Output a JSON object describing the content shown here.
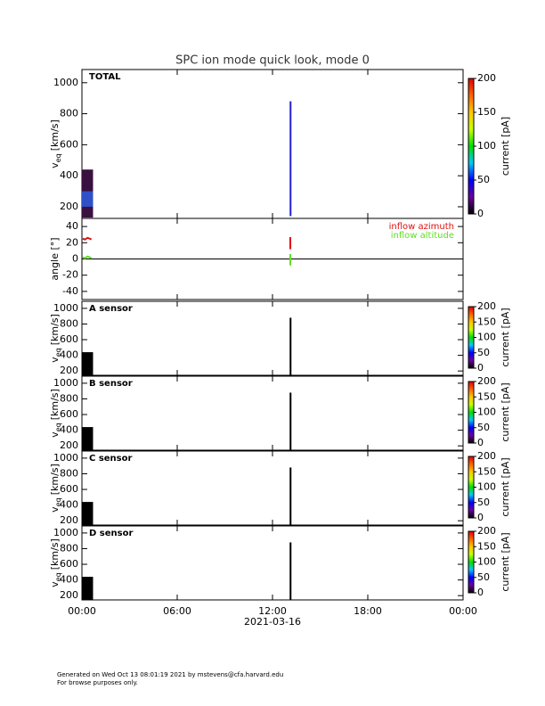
{
  "title": "SPC ion mode quick look, mode 0",
  "xaxis": {
    "xlim": [
      0,
      24
    ],
    "xticks": [
      {
        "value": 0,
        "label": "00:00"
      },
      {
        "value": 6,
        "label": "06:00"
      },
      {
        "value": 12,
        "label": "12:00"
      },
      {
        "value": 18,
        "label": "18:00"
      },
      {
        "value": 24,
        "label": "00:00"
      }
    ],
    "xlabel": "2021-03-16"
  },
  "chart_data": [
    {
      "type": "spectrogram",
      "panel_label": "TOTAL",
      "ylabel": {
        "main": "v",
        "sub": "eq",
        "unit": "[km/s]"
      },
      "ylim": [
        125,
        1085
      ],
      "yticks": [
        200,
        400,
        600,
        800,
        1000
      ],
      "blocks": {
        "x_start": [
          0,
          0,
          13.08
        ],
        "x_end": [
          0.7,
          0.7,
          13.12
        ],
        "v_min": [
          130,
          200,
          140
        ],
        "v_max": [
          440,
          300,
          880
        ],
        "color": [
          "#3a1040",
          "#3050c8",
          "#2020d0"
        ]
      },
      "colorbar": {
        "label": "current [pA]",
        "lim": [
          0,
          200
        ],
        "ticks": [
          0,
          50,
          100,
          150,
          200
        ],
        "colors": [
          "#000000",
          "#6a00a0",
          "#0000ff",
          "#00c8ff",
          "#00e000",
          "#c8ff00",
          "#ffc800",
          "#ff6400",
          "#e00000"
        ]
      }
    },
    {
      "type": "line",
      "ylabel": {
        "main": "angle [°]"
      },
      "ylim": [
        -50,
        50
      ],
      "yticks": [
        -40,
        -20,
        0,
        20,
        40
      ],
      "zero_line": true,
      "series": [
        {
          "name": "inflow azimuth",
          "color": "#e01010",
          "x": [
            0.05,
            0.2,
            0.35,
            0.5,
            0.6,
            null,
            13.12,
            13.12
          ],
          "values": [
            25,
            24,
            26,
            25,
            24,
            null,
            12,
            27
          ]
        },
        {
          "name": "inflow altitude",
          "color": "#60e020",
          "x": [
            0.05,
            0.2,
            0.35,
            0.5,
            0.6,
            null,
            13.12,
            13.12
          ],
          "values": [
            2,
            1,
            3,
            2,
            1,
            null,
            -8,
            6
          ]
        }
      ]
    },
    {
      "type": "spectrogram",
      "panel_label": "A sensor",
      "ylabel": {
        "main": "v",
        "sub": "eq",
        "unit": "[km/s]"
      },
      "ylim": [
        145,
        1090
      ],
      "yticks": [
        200,
        400,
        600,
        800,
        1000
      ],
      "blocks": {
        "x_start": [
          0,
          13.08
        ],
        "x_end": [
          0.7,
          13.12
        ],
        "v_min": [
          145,
          145
        ],
        "v_max": [
          440,
          880
        ],
        "color": [
          "#000000",
          "#000000"
        ]
      },
      "colorbar": {
        "label": "current [pA]",
        "lim": [
          0,
          200
        ],
        "ticks": [
          0,
          50,
          100,
          150,
          200
        ],
        "colors": [
          "#000000",
          "#6a00a0",
          "#0000ff",
          "#00c8ff",
          "#00e000",
          "#c8ff00",
          "#ffc800",
          "#ff6400",
          "#e00000"
        ]
      }
    },
    {
      "type": "spectrogram",
      "panel_label": "B sensor",
      "ylabel": {
        "main": "v",
        "sub": "eq",
        "unit": "[km/s]"
      },
      "ylim": [
        145,
        1090
      ],
      "yticks": [
        200,
        400,
        600,
        800,
        1000
      ],
      "blocks": {
        "x_start": [
          0,
          13.08
        ],
        "x_end": [
          0.7,
          13.12
        ],
        "v_min": [
          145,
          145
        ],
        "v_max": [
          440,
          880
        ],
        "color": [
          "#000000",
          "#000000"
        ]
      },
      "colorbar": {
        "label": "current [pA]",
        "lim": [
          0,
          200
        ],
        "ticks": [
          0,
          50,
          100,
          150,
          200
        ],
        "colors": [
          "#000000",
          "#6a00a0",
          "#0000ff",
          "#00c8ff",
          "#00e000",
          "#c8ff00",
          "#ffc800",
          "#ff6400",
          "#e00000"
        ]
      }
    },
    {
      "type": "spectrogram",
      "panel_label": "C sensor",
      "ylabel": {
        "main": "v",
        "sub": "eq",
        "unit": "[km/s]"
      },
      "ylim": [
        145,
        1090
      ],
      "yticks": [
        200,
        400,
        600,
        800,
        1000
      ],
      "blocks": {
        "x_start": [
          0,
          13.08
        ],
        "x_end": [
          0.7,
          13.12
        ],
        "v_min": [
          145,
          145
        ],
        "v_max": [
          440,
          880
        ],
        "color": [
          "#000000",
          "#000000"
        ]
      },
      "colorbar": {
        "label": "current [pA]",
        "lim": [
          0,
          200
        ],
        "ticks": [
          0,
          50,
          100,
          150,
          200
        ],
        "colors": [
          "#000000",
          "#6a00a0",
          "#0000ff",
          "#00c8ff",
          "#00e000",
          "#c8ff00",
          "#ffc800",
          "#ff6400",
          "#e00000"
        ]
      }
    },
    {
      "type": "spectrogram",
      "panel_label": "D sensor",
      "ylabel": {
        "main": "v",
        "sub": "eq",
        "unit": "[km/s]"
      },
      "ylim": [
        145,
        1090
      ],
      "yticks": [
        200,
        400,
        600,
        800,
        1000
      ],
      "blocks": {
        "x_start": [
          0,
          13.08
        ],
        "x_end": [
          0.7,
          13.12
        ],
        "v_min": [
          145,
          145
        ],
        "v_max": [
          440,
          880
        ],
        "color": [
          "#000000",
          "#000000"
        ]
      },
      "colorbar": {
        "label": "current [pA]",
        "lim": [
          0,
          200
        ],
        "ticks": [
          0,
          50,
          100,
          150,
          200
        ],
        "colors": [
          "#000000",
          "#6a00a0",
          "#0000ff",
          "#00c8ff",
          "#00e000",
          "#c8ff00",
          "#ffc800",
          "#ff6400",
          "#e00000"
        ]
      }
    }
  ],
  "footer": [
    "Generated on Wed Oct 13 08:01:19 2021 by mstevens@cfa.harvard.edu",
    "For browse purposes only."
  ]
}
